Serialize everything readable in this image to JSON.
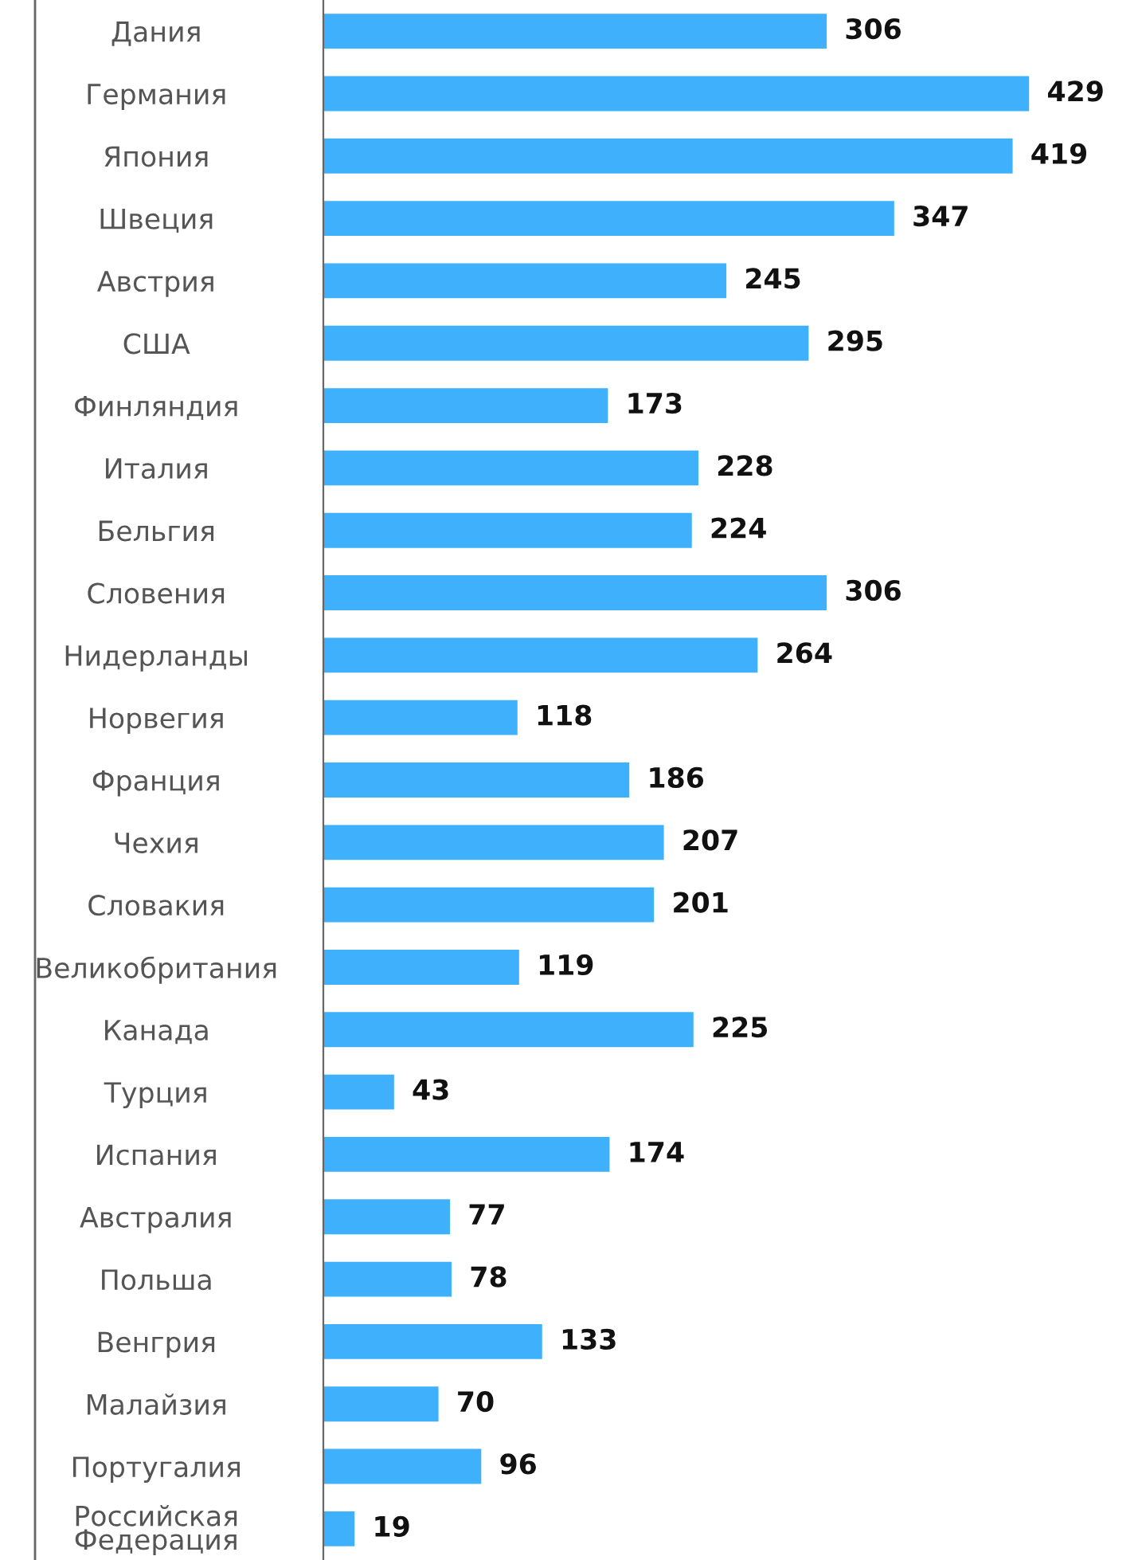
{
  "chart_data": {
    "type": "bar",
    "orientation": "horizontal",
    "data_labels": true,
    "color": "#3eb0fc",
    "categories": [
      "Дания",
      "Германия",
      "Япония",
      "Швеция",
      "Австрия",
      "США",
      "Финляндия",
      "Италия",
      "Бельгия",
      "Словения",
      "Нидерланды",
      "Норвегия",
      "Франция",
      "Чехия",
      "Словакия",
      "Великобритания",
      "Канада",
      "Турция",
      "Испания",
      "Австралия",
      "Польша",
      "Венгрия",
      "Малайзия",
      "Португалия",
      "Российская Федерация"
    ],
    "values": [
      306,
      429,
      419,
      347,
      245,
      295,
      173,
      228,
      224,
      306,
      264,
      118,
      186,
      207,
      201,
      119,
      225,
      43,
      174,
      77,
      78,
      133,
      70,
      96,
      19
    ]
  }
}
